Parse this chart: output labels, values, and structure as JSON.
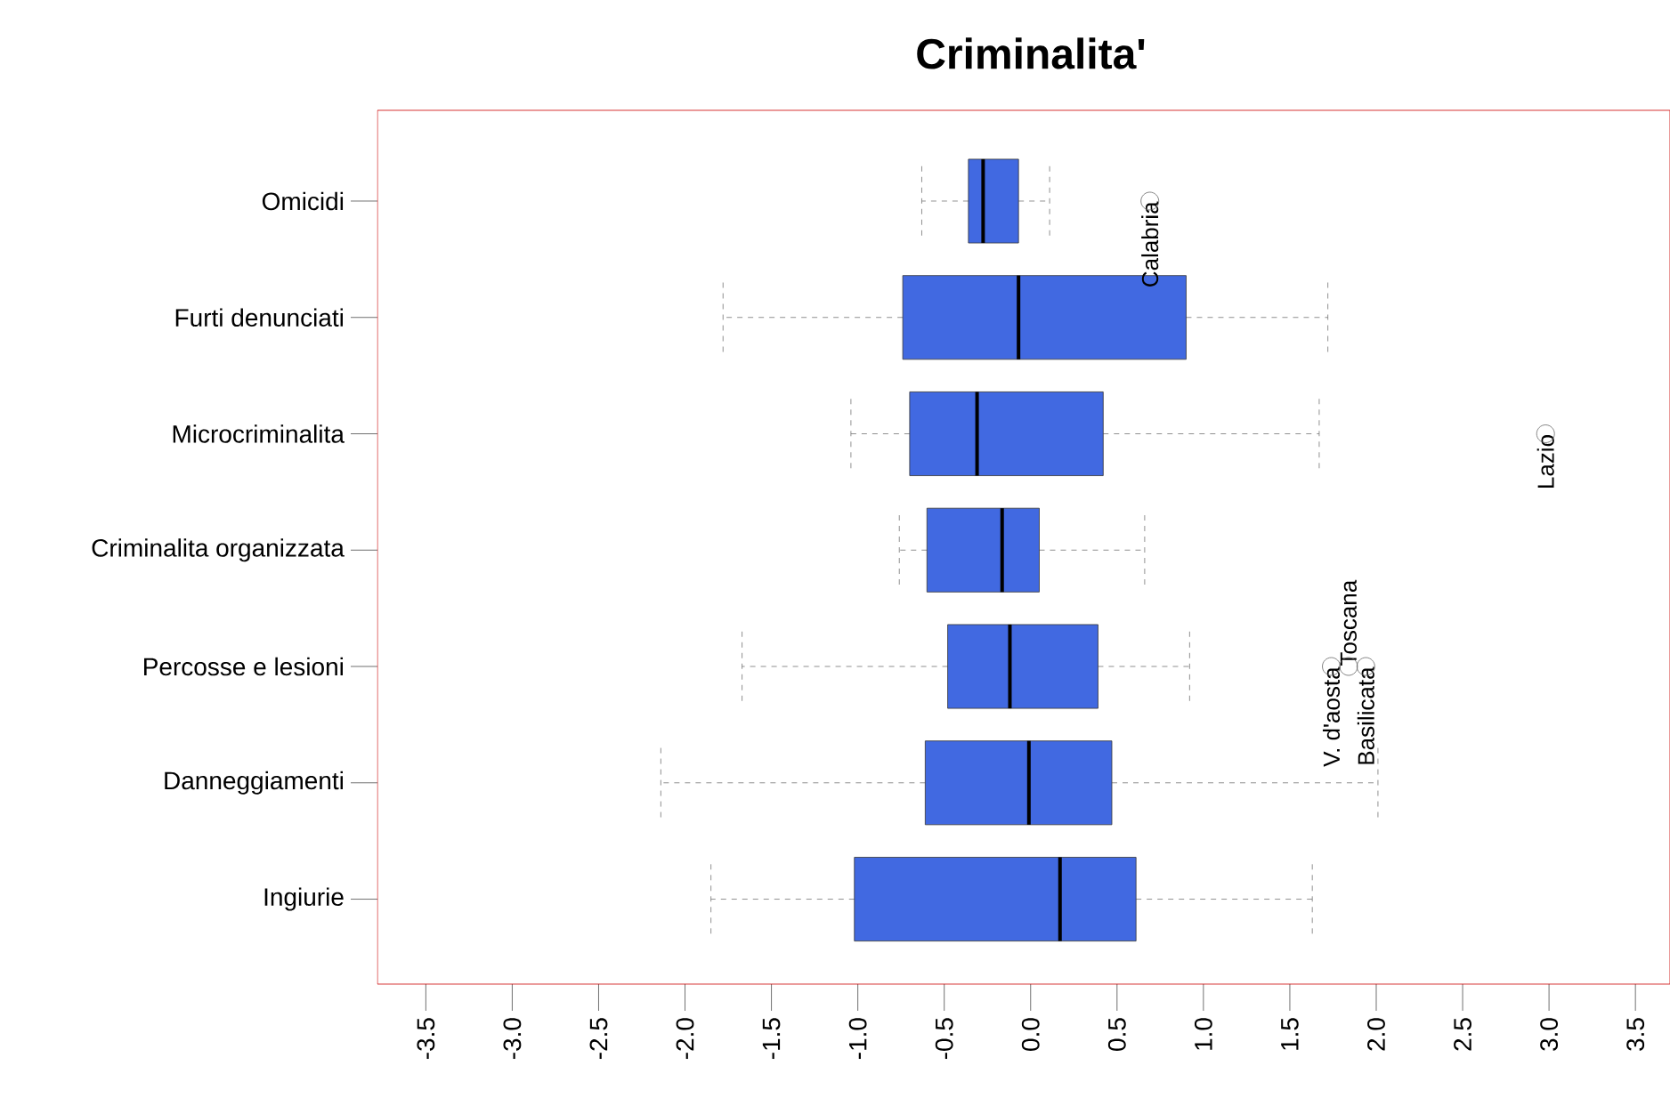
{
  "chart_data": {
    "type": "box",
    "title": "Criminalita'",
    "orientation": "horizontal",
    "color": "#4169e1",
    "marker": "circle",
    "categories": [
      "Omicidi",
      "Furti denunciati",
      "Microcriminalita",
      "Criminalita organizzata",
      "Percosse e lesioni",
      "Danneggiamenti",
      "Ingiurie"
    ],
    "boxes": [
      {
        "low": -0.63,
        "q1": -0.36,
        "median": -0.275,
        "q3": -0.07,
        "high": 0.11,
        "outliers": [
          0.69
        ]
      },
      {
        "low": -1.78,
        "q1": -0.74,
        "median": -0.07,
        "q3": 0.9,
        "high": 1.72
      },
      {
        "low": -1.04,
        "q1": -0.7,
        "median": -0.31,
        "q3": 0.42,
        "high": 1.67,
        "outliers": [
          2.98
        ]
      },
      {
        "low": -0.76,
        "q1": -0.6,
        "median": -0.165,
        "q3": 0.05,
        "high": 0.66
      },
      {
        "low": -1.67,
        "q1": -0.48,
        "median": -0.12,
        "q3": 0.39,
        "high": 0.92,
        "outliers": [
          1.74,
          1.84,
          1.94
        ]
      },
      {
        "low": -2.14,
        "q1": -0.61,
        "median": -0.01,
        "q3": 0.47,
        "high": 2.01
      },
      {
        "low": -1.85,
        "q1": -1.02,
        "median": 0.17,
        "q3": 0.61,
        "high": 1.63
      }
    ],
    "xlim": [
      -3.78,
      3.7
    ],
    "xticks": [
      {
        "value": -3.5,
        "label": "-3.5"
      },
      {
        "value": -3,
        "label": "-3.0"
      },
      {
        "value": -2.5,
        "label": "-2.5"
      },
      {
        "value": -2,
        "label": "-2.0"
      },
      {
        "value": -1.5,
        "label": "-1.5"
      },
      {
        "value": -1,
        "label": "-1.0"
      },
      {
        "value": -0.5,
        "label": "-0.5"
      },
      {
        "value": 0,
        "label": "0.0"
      },
      {
        "value": 0.5,
        "label": "0.5"
      },
      {
        "value": 1,
        "label": "1.0"
      },
      {
        "value": 1.5,
        "label": "1.5"
      },
      {
        "value": 2,
        "label": "2.0"
      },
      {
        "value": 2.5,
        "label": "2.5"
      },
      {
        "value": 3,
        "label": "3.0"
      },
      {
        "value": 3.5,
        "label": "3.5"
      }
    ],
    "annotations": [
      "Calabria",
      "Lazio",
      "V. d'aosta",
      "Toscana",
      "Basilicata"
    ]
  }
}
